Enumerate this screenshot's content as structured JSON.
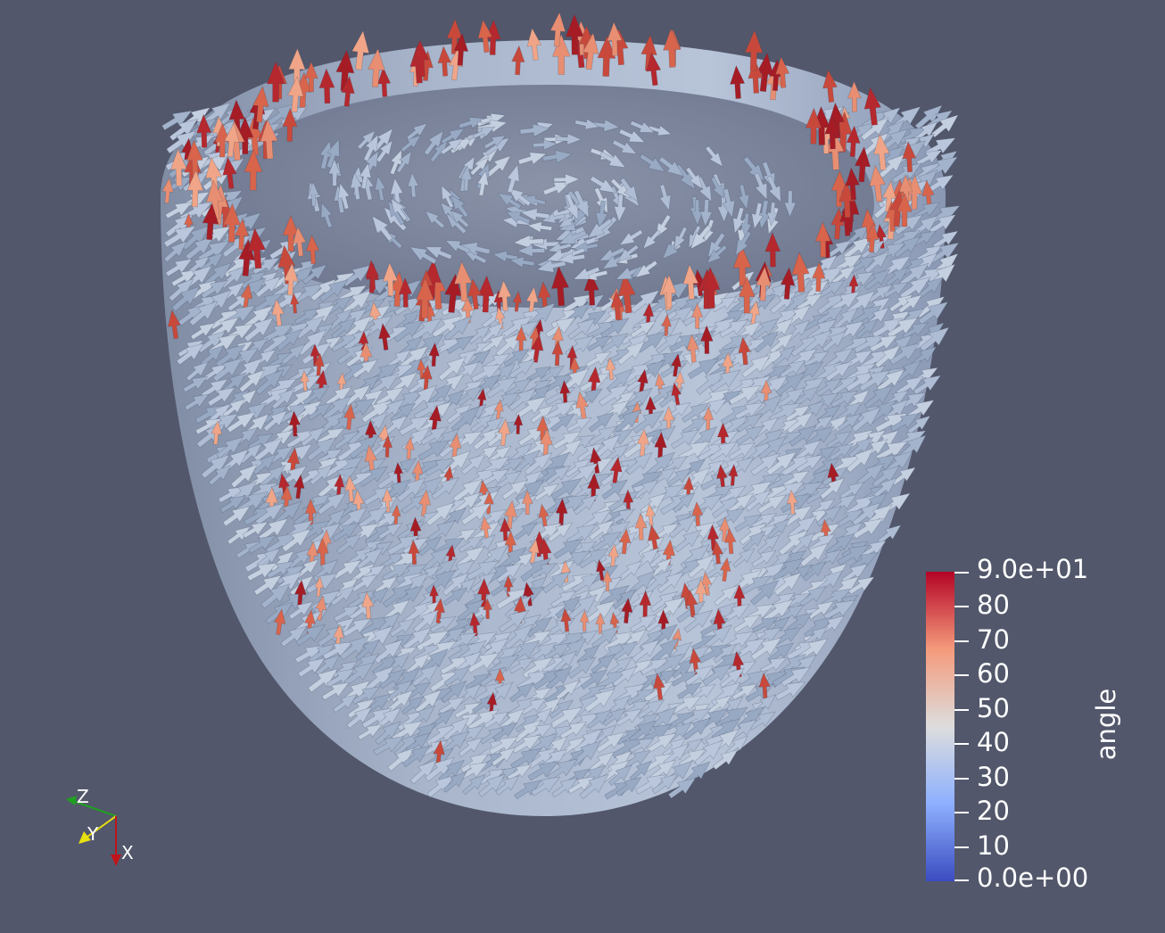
{
  "colorbar": {
    "title": "angle",
    "max_label": "9.0e+01",
    "min_label": "0.0e+00",
    "tick_labels": [
      "80",
      "70",
      "60",
      "50",
      "40",
      "30",
      "20",
      "10"
    ],
    "range": [
      0,
      90
    ],
    "colors": {
      "low": "#3b4cc0",
      "mid": "#dddddd",
      "high": "#b40426"
    }
  },
  "orientation_axes": {
    "z_label": "Z",
    "y_label": "Y",
    "x_label": "X"
  },
  "colors": {
    "background": "#52576b",
    "x_axis": "#c0141a",
    "y_axis": "#e8e010",
    "z_axis": "#20a020"
  }
}
